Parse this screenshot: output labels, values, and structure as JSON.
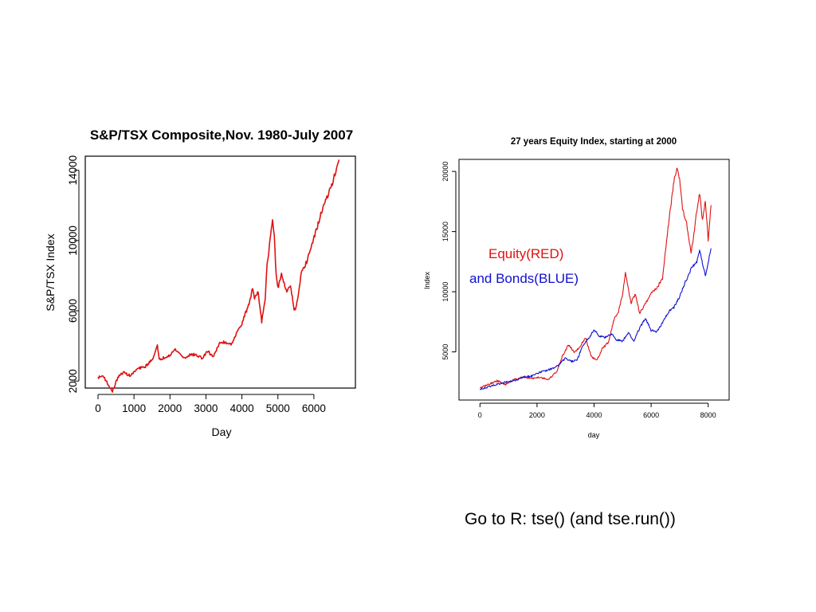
{
  "caption": "Go to R:  tse() (and tse.run())",
  "colors": {
    "equity": "#e01010",
    "bonds": "#1010d0",
    "axis": "#000000"
  },
  "chart_data": [
    {
      "type": "line",
      "title": "S&P/TSX Composite,Nov. 1980-July 2007",
      "xlabel": "Day",
      "ylabel": "S&P/TSX Index",
      "xlim": [
        0,
        6800
      ],
      "ylim": [
        1600,
        14800
      ],
      "x_ticks": [
        0,
        1000,
        2000,
        3000,
        4000,
        5000,
        6000
      ],
      "x_tick_labels": [
        "0",
        "1000",
        "2000",
        "3000",
        "4000",
        "5000",
        "6000"
      ],
      "y_ticks": [
        2000,
        6000,
        10000,
        14000
      ],
      "y_tick_labels": [
        "2000",
        "6000",
        "10000",
        "14000"
      ],
      "series": [
        {
          "name": "S&P/TSX Index",
          "color": "#e01010",
          "x": [
            0,
            150,
            250,
            400,
            550,
            700,
            900,
            1100,
            1300,
            1500,
            1650,
            1700,
            1800,
            2000,
            2150,
            2250,
            2400,
            2550,
            2700,
            2900,
            3050,
            3200,
            3400,
            3550,
            3700,
            3850,
            4000,
            4200,
            4300,
            4350,
            4450,
            4550,
            4650,
            4700,
            4800,
            4850,
            4900,
            4950,
            5000,
            5100,
            5250,
            5350,
            5450,
            5500,
            5550,
            5650,
            5800,
            5950,
            6100,
            6250,
            6400,
            6550,
            6650,
            6700
          ],
          "values": [
            2200,
            2300,
            1900,
            1400,
            2200,
            2500,
            2300,
            2700,
            2800,
            3200,
            4000,
            3200,
            3300,
            3500,
            3800,
            3600,
            3300,
            3500,
            3500,
            3300,
            3700,
            3400,
            4200,
            4200,
            4100,
            4700,
            5300,
            6400,
            7300,
            6700,
            7100,
            5400,
            6800,
            8600,
            10300,
            11200,
            10200,
            8000,
            7300,
            8100,
            7000,
            7500,
            6000,
            6200,
            6600,
            8100,
            8800,
            9800,
            10800,
            11900,
            12600,
            13500,
            14300,
            14600
          ]
        }
      ]
    },
    {
      "type": "line",
      "title": "27 years Equity Index, starting at 2000",
      "xlabel": "day",
      "ylabel": "Index",
      "xlim": [
        -400,
        8400
      ],
      "ylim": [
        1000,
        21000
      ],
      "x_ticks": [
        0,
        2000,
        4000,
        6000,
        8000
      ],
      "x_tick_labels": [
        "0",
        "2000",
        "4000",
        "6000",
        "8000"
      ],
      "y_ticks": [
        5000,
        10000,
        15000,
        20000
      ],
      "y_tick_labels": [
        "5000",
        "10000",
        "15000",
        "20000"
      ],
      "annotations": [
        "Equity(RED)",
        "and Bonds(BLUE)"
      ],
      "series": [
        {
          "name": "Equity",
          "color": "#e01010",
          "x": [
            0,
            300,
            600,
            900,
            1200,
            1500,
            1800,
            2100,
            2400,
            2700,
            2900,
            3100,
            3300,
            3500,
            3700,
            3900,
            4100,
            4300,
            4500,
            4700,
            4850,
            5000,
            5100,
            5200,
            5300,
            5450,
            5600,
            5800,
            6000,
            6200,
            6400,
            6500,
            6650,
            6800,
            6900,
            7000,
            7100,
            7250,
            7400,
            7500,
            7600,
            7700,
            7800,
            7900,
            8000,
            8100
          ],
          "values": [
            2000,
            2300,
            2600,
            2300,
            2700,
            2900,
            2800,
            2900,
            2700,
            3400,
            4700,
            5600,
            5000,
            5400,
            6200,
            4600,
            4300,
            5300,
            5800,
            7700,
            8300,
            9800,
            11600,
            10200,
            9100,
            9800,
            8200,
            9000,
            9900,
            10300,
            11100,
            13400,
            16400,
            19200,
            20300,
            19300,
            16900,
            15600,
            13200,
            14800,
            16700,
            18200,
            15900,
            17600,
            14300,
            17200
          ]
        },
        {
          "name": "Bonds",
          "color": "#1010d0",
          "x": [
            0,
            300,
            600,
            900,
            1200,
            1500,
            1800,
            2100,
            2400,
            2700,
            3000,
            3200,
            3400,
            3600,
            3800,
            4000,
            4200,
            4400,
            4600,
            4800,
            5000,
            5200,
            5400,
            5600,
            5800,
            6000,
            6200,
            6400,
            6600,
            6800,
            7000,
            7200,
            7400,
            7600,
            7700,
            7800,
            7900,
            8000,
            8100
          ],
          "values": [
            1900,
            2100,
            2300,
            2500,
            2600,
            2900,
            3000,
            3300,
            3500,
            3800,
            4500,
            4200,
            4300,
            5500,
            6100,
            6800,
            6300,
            6200,
            6500,
            6000,
            5900,
            6600,
            5900,
            7000,
            7800,
            6800,
            6700,
            7400,
            8300,
            8700,
            9600,
            10800,
            11900,
            12500,
            13500,
            12400,
            11300,
            12500,
            13600
          ]
        }
      ]
    }
  ]
}
